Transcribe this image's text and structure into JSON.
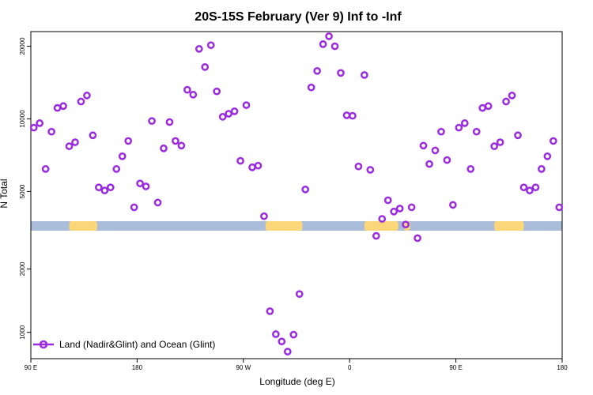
{
  "chart_data": {
    "type": "scatter",
    "title": "20S-15S February (Ver 9)   Inf to -Inf",
    "xlabel": "Longitude (deg E)",
    "ylabel": "N Total",
    "xlim": [
      0,
      360
    ],
    "x_ticks": [
      {
        "pos": 0,
        "label": "90 E"
      },
      {
        "pos": 72,
        "label": "180"
      },
      {
        "pos": 144,
        "label": "90 W"
      },
      {
        "pos": 216,
        "label": "0"
      },
      {
        "pos": 288,
        "label": "90 E"
      },
      {
        "pos": 360,
        "label": "180"
      }
    ],
    "y_axis_scale": "piecewise-log",
    "upper_panel": {
      "ylim": [
        3600,
        23000
      ],
      "ticks": [
        5000,
        10000,
        20000
      ]
    },
    "lower_panel": {
      "ylim": [
        750,
        3200
      ],
      "ticks": [
        1000,
        2000
      ]
    },
    "legend": {
      "entries": [
        "Land (Nadir&Glint) and Ocean (Glint)"
      ],
      "position": "bottom-left"
    },
    "colors": {
      "series": "#9b2be0",
      "ocean": "#a9bcd9",
      "land": "#fcd77a"
    },
    "surface_strip": {
      "land_ranges": [
        [
          26,
          45
        ],
        [
          159,
          184
        ],
        [
          226,
          249
        ],
        [
          253,
          257
        ],
        [
          314,
          334
        ]
      ]
    },
    "series": [
      {
        "name": "Land (Nadir&Glint) and Ocean (Glint)",
        "points": [
          {
            "x": 2,
            "y": 9200
          },
          {
            "x": 6,
            "y": 9600
          },
          {
            "x": 10,
            "y": 6200
          },
          {
            "x": 14,
            "y": 8850
          },
          {
            "x": 18,
            "y": 11100
          },
          {
            "x": 22,
            "y": 11300
          },
          {
            "x": 26,
            "y": 7700
          },
          {
            "x": 30,
            "y": 8000
          },
          {
            "x": 34,
            "y": 11800
          },
          {
            "x": 38,
            "y": 12500
          },
          {
            "x": 42,
            "y": 8550
          },
          {
            "x": 46,
            "y": 5200
          },
          {
            "x": 50,
            "y": 5050
          },
          {
            "x": 54,
            "y": 5200
          },
          {
            "x": 58,
            "y": 6200
          },
          {
            "x": 62,
            "y": 7000
          },
          {
            "x": 66,
            "y": 8100
          },
          {
            "x": 70,
            "y": 4300
          },
          {
            "x": 74,
            "y": 5400
          },
          {
            "x": 78,
            "y": 5250
          },
          {
            "x": 82,
            "y": 9800
          },
          {
            "x": 86,
            "y": 4500
          },
          {
            "x": 90,
            "y": 7550
          },
          {
            "x": 94,
            "y": 9700
          },
          {
            "x": 98,
            "y": 8100
          },
          {
            "x": 102,
            "y": 7750
          },
          {
            "x": 106,
            "y": 13200
          },
          {
            "x": 110,
            "y": 12600
          },
          {
            "x": 114,
            "y": 19500
          },
          {
            "x": 118,
            "y": 16400
          },
          {
            "x": 122,
            "y": 20200
          },
          {
            "x": 126,
            "y": 13000
          },
          {
            "x": 130,
            "y": 10200
          },
          {
            "x": 134,
            "y": 10500
          },
          {
            "x": 138,
            "y": 10750
          },
          {
            "x": 142,
            "y": 6700
          },
          {
            "x": 146,
            "y": 11400
          },
          {
            "x": 150,
            "y": 6300
          },
          {
            "x": 154,
            "y": 6400
          },
          {
            "x": 158,
            "y": 3950
          },
          {
            "x": 162,
            "y": 1260
          },
          {
            "x": 166,
            "y": 980
          },
          {
            "x": 170,
            "y": 905
          },
          {
            "x": 174,
            "y": 810
          },
          {
            "x": 178,
            "y": 975
          },
          {
            "x": 182,
            "y": 1520
          },
          {
            "x": 186,
            "y": 5100
          },
          {
            "x": 190,
            "y": 13500
          },
          {
            "x": 194,
            "y": 15800
          },
          {
            "x": 198,
            "y": 20400
          },
          {
            "x": 202,
            "y": 22000
          },
          {
            "x": 206,
            "y": 20000
          },
          {
            "x": 210,
            "y": 15500
          },
          {
            "x": 214,
            "y": 10350
          },
          {
            "x": 218,
            "y": 10300
          },
          {
            "x": 222,
            "y": 6350
          },
          {
            "x": 226,
            "y": 15200
          },
          {
            "x": 230,
            "y": 6150
          },
          {
            "x": 234,
            "y": 2870
          },
          {
            "x": 238,
            "y": 3850
          },
          {
            "x": 242,
            "y": 4600
          },
          {
            "x": 246,
            "y": 4130
          },
          {
            "x": 250,
            "y": 4250
          },
          {
            "x": 254,
            "y": 3650
          },
          {
            "x": 258,
            "y": 4300
          },
          {
            "x": 262,
            "y": 2800
          },
          {
            "x": 266,
            "y": 7750
          },
          {
            "x": 270,
            "y": 6500
          },
          {
            "x": 274,
            "y": 7400
          },
          {
            "x": 278,
            "y": 8850
          },
          {
            "x": 282,
            "y": 6750
          },
          {
            "x": 286,
            "y": 4400
          },
          {
            "x": 290,
            "y": 9200
          },
          {
            "x": 294,
            "y": 9600
          },
          {
            "x": 298,
            "y": 6200
          },
          {
            "x": 302,
            "y": 8850
          },
          {
            "x": 306,
            "y": 11100
          },
          {
            "x": 310,
            "y": 11300
          },
          {
            "x": 314,
            "y": 7700
          },
          {
            "x": 318,
            "y": 8000
          },
          {
            "x": 322,
            "y": 11800
          },
          {
            "x": 326,
            "y": 12500
          },
          {
            "x": 330,
            "y": 8550
          },
          {
            "x": 334,
            "y": 5200
          },
          {
            "x": 338,
            "y": 5050
          },
          {
            "x": 342,
            "y": 5200
          },
          {
            "x": 346,
            "y": 6200
          },
          {
            "x": 350,
            "y": 7000
          },
          {
            "x": 354,
            "y": 8100
          },
          {
            "x": 358,
            "y": 4300
          }
        ]
      }
    ]
  }
}
